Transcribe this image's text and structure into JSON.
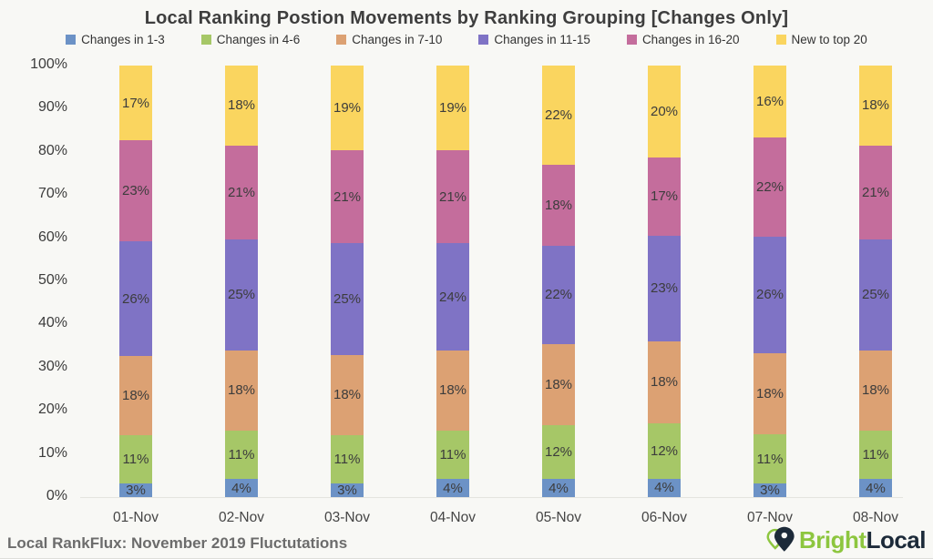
{
  "title": "Local Ranking Postion Movements by Ranking Grouping [Changes Only]",
  "chart_data": {
    "type": "bar",
    "subtype": "stacked-percent",
    "title": "Local Ranking Postion Movements by Ranking Grouping [Changes Only]",
    "categories": [
      "01-Nov",
      "02-Nov",
      "03-Nov",
      "04-Nov",
      "05-Nov",
      "06-Nov",
      "07-Nov",
      "08-Nov"
    ],
    "series": [
      {
        "name": "Changes in 1-3",
        "color": "#6c92c6",
        "values": [
          3,
          4,
          3,
          4,
          4,
          4,
          3,
          4
        ]
      },
      {
        "name": "Changes in 4-6",
        "color": "#a6c767",
        "values": [
          11,
          11,
          11,
          11,
          12,
          12,
          11,
          11
        ]
      },
      {
        "name": "Changes in 7-10",
        "color": "#dca173",
        "values": [
          18,
          18,
          18,
          18,
          18,
          18,
          18,
          18
        ]
      },
      {
        "name": "Changes in 11-15",
        "color": "#7f73c5",
        "values": [
          26,
          25,
          25,
          24,
          22,
          23,
          26,
          25
        ]
      },
      {
        "name": "Changes in 16-20",
        "color": "#c46d9c",
        "values": [
          23,
          21,
          21,
          21,
          18,
          17,
          22,
          21
        ]
      },
      {
        "name": "New to top 20",
        "color": "#fad55f",
        "values": [
          17,
          18,
          19,
          19,
          22,
          20,
          16,
          18
        ]
      }
    ],
    "value_suffix": "%",
    "yticks": [
      "100%",
      "90%",
      "80%",
      "70%",
      "60%",
      "50%",
      "40%",
      "30%",
      "20%",
      "10%",
      "0%"
    ],
    "ylim": [
      0,
      100
    ],
    "grid": false,
    "legend_position": "top",
    "label_color": "#3c3c3c"
  },
  "footer": {
    "source_text": "Local RankFlux: November 2019 Fluctutations"
  },
  "brand": {
    "name_part1": "Bright",
    "name_part2": "Local",
    "green": "#8dc63f",
    "navy": "#1c2a39"
  }
}
